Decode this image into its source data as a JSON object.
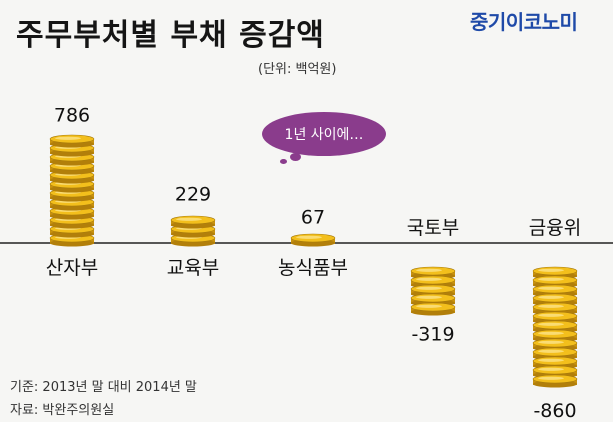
{
  "brand": "중기이코노미",
  "chart_data": {
    "type": "bar",
    "title": "주무부처별 부채 증감액",
    "unit": "(단위: 백억원)",
    "categories": [
      "산자부",
      "교육부",
      "농식품부",
      "국토부",
      "금융위"
    ],
    "values": [
      786,
      229,
      67,
      -319,
      -860
    ],
    "value_labels": [
      "786",
      "229",
      "67",
      "-319",
      "-860"
    ],
    "annotation": "1년 사이에…",
    "coin_color": "#f3bf1c"
  },
  "footer": {
    "basis": "기준: 2013년 말 대비 2014년 말",
    "source": "자료: 박완주의원실"
  }
}
